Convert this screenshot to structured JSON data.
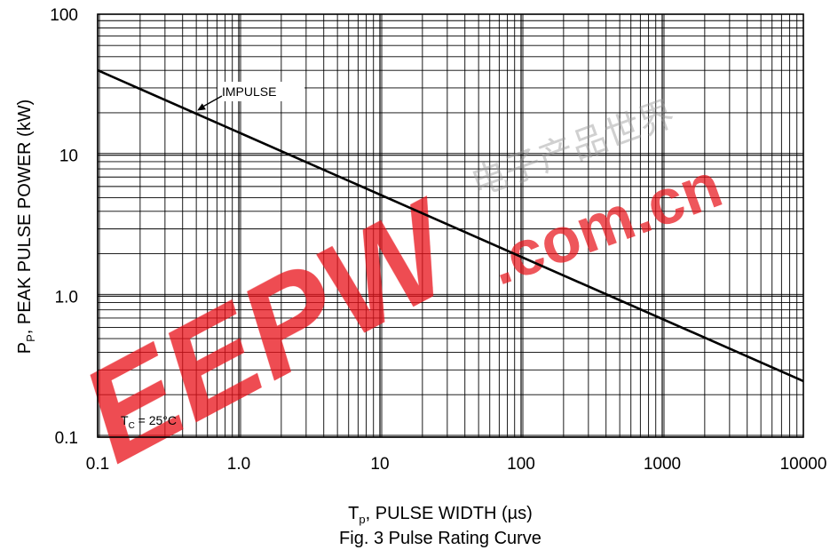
{
  "chart_data": {
    "type": "line",
    "title": "",
    "caption": "Fig. 3 Pulse Rating Curve",
    "xlabel": {
      "main": "T",
      "sub": "p",
      "rest": ", PULSE WIDTH (µs)"
    },
    "ylabel": {
      "main": "P",
      "sub": "P",
      "rest": ", PEAK PULSE POWER (kW)"
    },
    "x_scale": "log",
    "y_scale": "log",
    "xlim": [
      0.1,
      10000
    ],
    "ylim": [
      0.1,
      100
    ],
    "x_ticks": [
      {
        "value": 0.1,
        "label": "0.1"
      },
      {
        "value": 1,
        "label": "1.0"
      },
      {
        "value": 10,
        "label": "10"
      },
      {
        "value": 100,
        "label": "100"
      },
      {
        "value": 1000,
        "label": "1000"
      },
      {
        "value": 10000,
        "label": "10000"
      }
    ],
    "y_ticks": [
      {
        "value": 0.1,
        "label": "0.1"
      },
      {
        "value": 1,
        "label": "1.0"
      },
      {
        "value": 10,
        "label": "10"
      },
      {
        "value": 100,
        "label": "100"
      }
    ],
    "grid": true,
    "series": [
      {
        "name": "IMPULSE",
        "x": [
          0.1,
          10000
        ],
        "y": [
          40,
          0.25
        ]
      }
    ],
    "annotations": {
      "impulse": {
        "text": "IMPULSE",
        "points_to": {
          "x": 0.5,
          "y": 20.4
        }
      },
      "condition": {
        "main": "T",
        "sub": "C",
        "rest": " = 25°C"
      }
    }
  },
  "watermark": {
    "logo_text": "EEPW",
    "site_text": ".com.cn",
    "cjk_text": "电子产品世界",
    "color": "#e8141c"
  },
  "colors": {
    "line": "#000000",
    "grid": "#000000",
    "background": "#ffffff"
  }
}
